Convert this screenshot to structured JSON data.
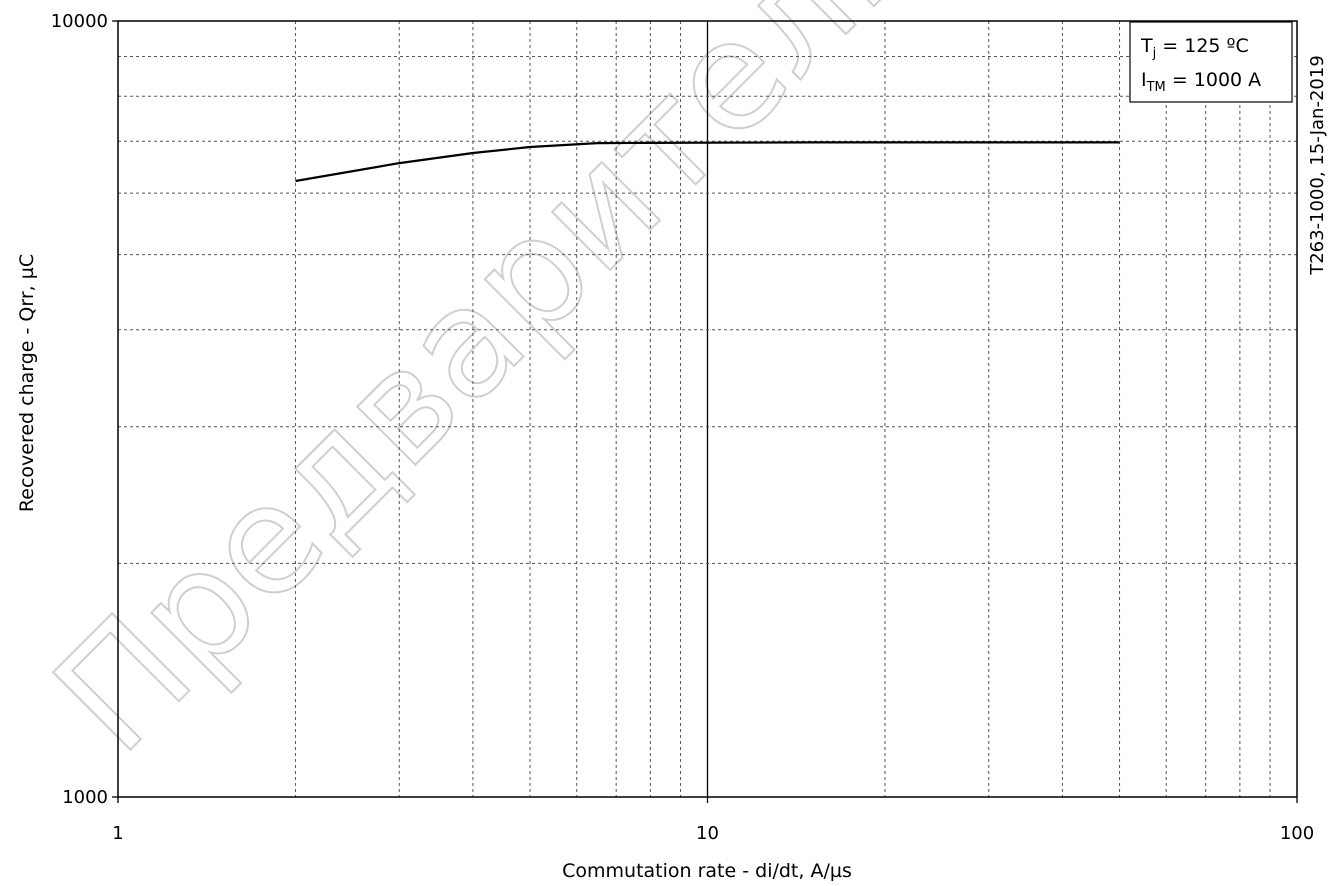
{
  "chart_data": {
    "type": "line",
    "title": "",
    "xlabel": "Commutation rate - di/dt, A/µs",
    "ylabel": "Recovered charge - Qrr, µC",
    "x_scale": "log",
    "y_scale": "log",
    "xlim": [
      1,
      100
    ],
    "ylim": [
      1000,
      10000
    ],
    "grid": true,
    "x_tick_labels": [
      "1",
      "10",
      "100"
    ],
    "y_tick_labels": [
      "1000",
      "10000"
    ],
    "legend_position": "top-right",
    "legend": {
      "line1_main": "T",
      "line1_sub": "j",
      "line1_rest": " = 125 ºC",
      "line2_main": "I",
      "line2_sub": "TM",
      "line2_rest": " = 1000 A"
    },
    "side_note": "T263-1000, 15-Jan-2019",
    "watermark": "Предварительный",
    "series": [
      {
        "x": [
          2,
          3,
          4,
          5,
          6.5,
          8,
          10,
          15,
          20,
          30,
          50
        ],
        "values": [
          6220,
          6560,
          6760,
          6880,
          6960,
          6965,
          6970,
          6975,
          6975,
          6975,
          6975
        ]
      }
    ]
  }
}
